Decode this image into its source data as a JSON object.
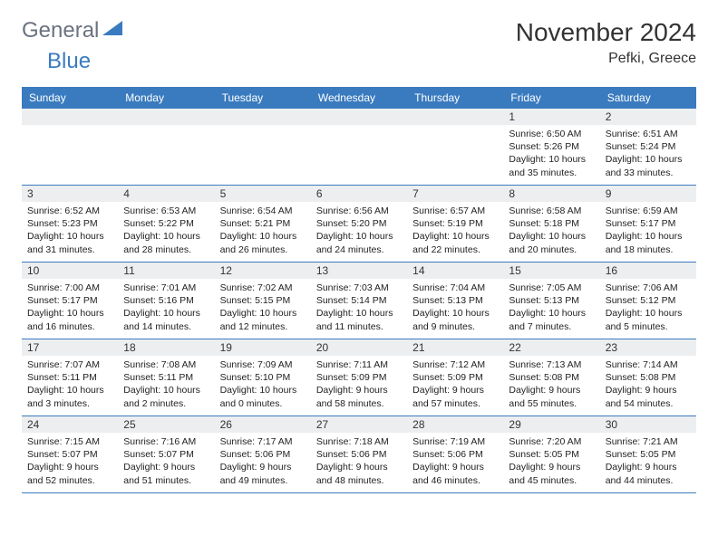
{
  "header": {
    "logo_general": "General",
    "logo_blue": "Blue",
    "logo_color_gray": "#6b7280",
    "logo_color_blue": "#3a7bbf",
    "month_title": "November 2024",
    "location": "Pefki, Greece"
  },
  "colors": {
    "header_bg": "#3a7bbf",
    "header_text": "#ffffff",
    "daynum_bg": "#eceef0",
    "row_border": "#3a7bbf",
    "text": "#222222"
  },
  "day_names": [
    "Sunday",
    "Monday",
    "Tuesday",
    "Wednesday",
    "Thursday",
    "Friday",
    "Saturday"
  ],
  "weeks": [
    [
      null,
      null,
      null,
      null,
      null,
      {
        "n": "1",
        "sunrise": "6:50 AM",
        "sunset": "5:26 PM",
        "day_h": "10",
        "day_m": "35"
      },
      {
        "n": "2",
        "sunrise": "6:51 AM",
        "sunset": "5:24 PM",
        "day_h": "10",
        "day_m": "33"
      }
    ],
    [
      {
        "n": "3",
        "sunrise": "6:52 AM",
        "sunset": "5:23 PM",
        "day_h": "10",
        "day_m": "31"
      },
      {
        "n": "4",
        "sunrise": "6:53 AM",
        "sunset": "5:22 PM",
        "day_h": "10",
        "day_m": "28"
      },
      {
        "n": "5",
        "sunrise": "6:54 AM",
        "sunset": "5:21 PM",
        "day_h": "10",
        "day_m": "26"
      },
      {
        "n": "6",
        "sunrise": "6:56 AM",
        "sunset": "5:20 PM",
        "day_h": "10",
        "day_m": "24"
      },
      {
        "n": "7",
        "sunrise": "6:57 AM",
        "sunset": "5:19 PM",
        "day_h": "10",
        "day_m": "22"
      },
      {
        "n": "8",
        "sunrise": "6:58 AM",
        "sunset": "5:18 PM",
        "day_h": "10",
        "day_m": "20"
      },
      {
        "n": "9",
        "sunrise": "6:59 AM",
        "sunset": "5:17 PM",
        "day_h": "10",
        "day_m": "18"
      }
    ],
    [
      {
        "n": "10",
        "sunrise": "7:00 AM",
        "sunset": "5:17 PM",
        "day_h": "10",
        "day_m": "16"
      },
      {
        "n": "11",
        "sunrise": "7:01 AM",
        "sunset": "5:16 PM",
        "day_h": "10",
        "day_m": "14"
      },
      {
        "n": "12",
        "sunrise": "7:02 AM",
        "sunset": "5:15 PM",
        "day_h": "10",
        "day_m": "12"
      },
      {
        "n": "13",
        "sunrise": "7:03 AM",
        "sunset": "5:14 PM",
        "day_h": "10",
        "day_m": "11"
      },
      {
        "n": "14",
        "sunrise": "7:04 AM",
        "sunset": "5:13 PM",
        "day_h": "10",
        "day_m": "9"
      },
      {
        "n": "15",
        "sunrise": "7:05 AM",
        "sunset": "5:13 PM",
        "day_h": "10",
        "day_m": "7"
      },
      {
        "n": "16",
        "sunrise": "7:06 AM",
        "sunset": "5:12 PM",
        "day_h": "10",
        "day_m": "5"
      }
    ],
    [
      {
        "n": "17",
        "sunrise": "7:07 AM",
        "sunset": "5:11 PM",
        "day_h": "10",
        "day_m": "3"
      },
      {
        "n": "18",
        "sunrise": "7:08 AM",
        "sunset": "5:11 PM",
        "day_h": "10",
        "day_m": "2"
      },
      {
        "n": "19",
        "sunrise": "7:09 AM",
        "sunset": "5:10 PM",
        "day_h": "10",
        "day_m": "0"
      },
      {
        "n": "20",
        "sunrise": "7:11 AM",
        "sunset": "5:09 PM",
        "day_h": "9",
        "day_m": "58"
      },
      {
        "n": "21",
        "sunrise": "7:12 AM",
        "sunset": "5:09 PM",
        "day_h": "9",
        "day_m": "57"
      },
      {
        "n": "22",
        "sunrise": "7:13 AM",
        "sunset": "5:08 PM",
        "day_h": "9",
        "day_m": "55"
      },
      {
        "n": "23",
        "sunrise": "7:14 AM",
        "sunset": "5:08 PM",
        "day_h": "9",
        "day_m": "54"
      }
    ],
    [
      {
        "n": "24",
        "sunrise": "7:15 AM",
        "sunset": "5:07 PM",
        "day_h": "9",
        "day_m": "52"
      },
      {
        "n": "25",
        "sunrise": "7:16 AM",
        "sunset": "5:07 PM",
        "day_h": "9",
        "day_m": "51"
      },
      {
        "n": "26",
        "sunrise": "7:17 AM",
        "sunset": "5:06 PM",
        "day_h": "9",
        "day_m": "49"
      },
      {
        "n": "27",
        "sunrise": "7:18 AM",
        "sunset": "5:06 PM",
        "day_h": "9",
        "day_m": "48"
      },
      {
        "n": "28",
        "sunrise": "7:19 AM",
        "sunset": "5:06 PM",
        "day_h": "9",
        "day_m": "46"
      },
      {
        "n": "29",
        "sunrise": "7:20 AM",
        "sunset": "5:05 PM",
        "day_h": "9",
        "day_m": "45"
      },
      {
        "n": "30",
        "sunrise": "7:21 AM",
        "sunset": "5:05 PM",
        "day_h": "9",
        "day_m": "44"
      }
    ]
  ],
  "labels": {
    "sunrise_prefix": "Sunrise: ",
    "sunset_prefix": "Sunset: ",
    "daylight_prefix": "Daylight: ",
    "hours_word": " hours",
    "and_word": "and ",
    "minutes_suffix": " minutes."
  }
}
